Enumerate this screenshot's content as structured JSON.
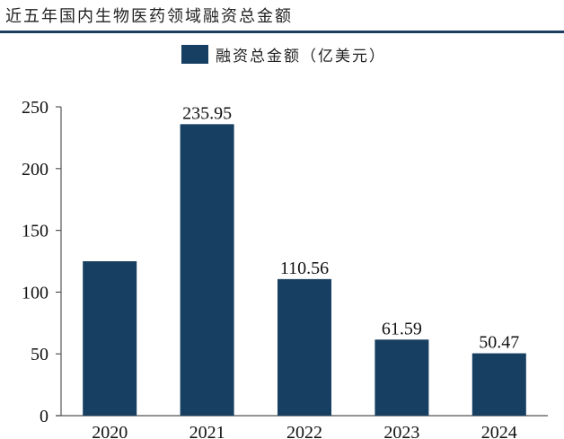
{
  "header": {
    "title": "近五年国内生物医药领域融资总金额"
  },
  "legend": {
    "label": "融资总金额（亿美元）",
    "color": "#173f61"
  },
  "chart_data": {
    "type": "bar",
    "title": "近五年国内生物医药领域融资总金额",
    "categories": [
      "2020",
      "2021",
      "2022",
      "2023",
      "2024"
    ],
    "series": [
      {
        "name": "融资总金额（亿美元）",
        "values": [
          125,
          235.95,
          110.56,
          61.59,
          50.47
        ],
        "data_labels": [
          "",
          "235.95",
          "110.56",
          "61.59",
          "50.47"
        ],
        "color": "#173f61"
      }
    ],
    "xlabel": "",
    "ylabel": "",
    "ylim": [
      0,
      250
    ],
    "yticks": [
      0,
      50,
      100,
      150,
      200,
      250
    ],
    "grid": false,
    "legend_position": "top"
  }
}
